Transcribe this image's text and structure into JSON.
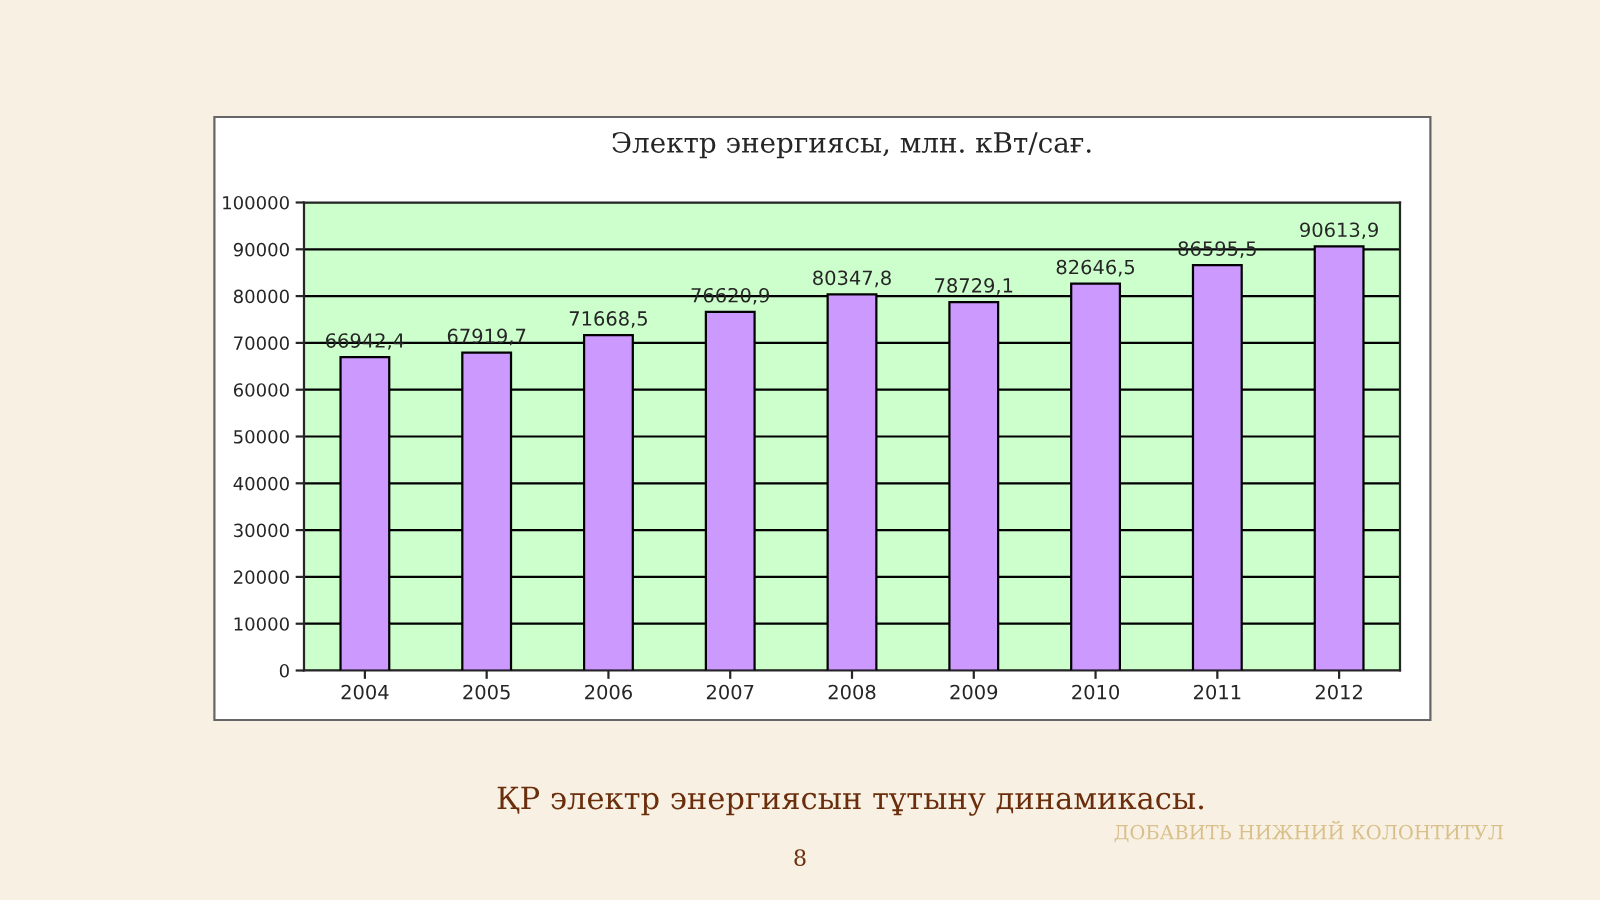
{
  "chart_data": {
    "type": "bar",
    "title": "Электр энергиясы, млн. кВт/сағ.",
    "categories": [
      "2004",
      "2005",
      "2006",
      "2007",
      "2008",
      "2009",
      "2010",
      "2011",
      "2012"
    ],
    "values": [
      66942.4,
      67919.7,
      71668.5,
      76620.9,
      80347.8,
      78729.1,
      82646.5,
      86595.5,
      90613.9
    ],
    "value_labels": [
      "66942,4",
      "67919,7",
      "71668,5",
      "76620,9",
      "80347,8",
      "78729,1",
      "82646,5",
      "86595,5",
      "90613,9"
    ],
    "color": "#cc99ff",
    "ylim": [
      0,
      100000
    ],
    "yticks": [
      0,
      10000,
      20000,
      30000,
      40000,
      50000,
      60000,
      70000,
      80000,
      90000,
      100000
    ],
    "grid": "y",
    "annotations": [
      "ҚР электр энергиясын тұтыну динамикасы.",
      "ДОБАВИТЬ НИЖНИЙ КОЛОНТИТУЛ",
      "8"
    ]
  }
}
